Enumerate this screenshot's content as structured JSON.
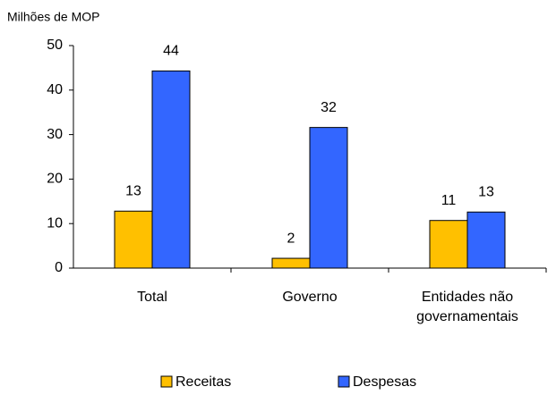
{
  "chart_data": {
    "type": "bar",
    "y_axis_label": "Milhões de MOP",
    "categories": [
      "Total",
      "Governo",
      "Entidades não governamentais"
    ],
    "series": [
      {
        "name": "Receitas",
        "color": "#ffc000",
        "values": [
          12.8,
          2.2,
          10.7
        ],
        "value_labels": [
          "13",
          "2",
          "11"
        ]
      },
      {
        "name": "Despesas",
        "color": "#3366ff",
        "values": [
          44.3,
          31.6,
          12.6
        ],
        "value_labels": [
          "44",
          "32",
          "13"
        ]
      }
    ],
    "ylim": [
      0,
      50
    ],
    "yticks": [
      0,
      10,
      20,
      30,
      40,
      50
    ],
    "grid": false,
    "legend": "bottom"
  }
}
